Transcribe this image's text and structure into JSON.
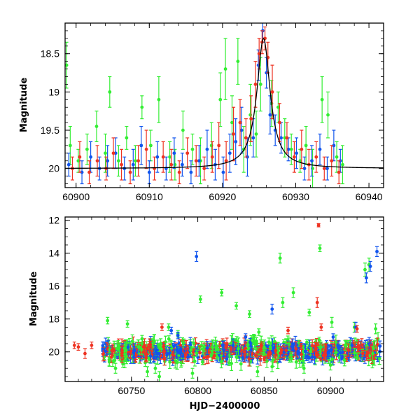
{
  "colors": {
    "green": "#33ee33",
    "blue": "#1155ee",
    "red": "#ee3322",
    "model": "#000000"
  },
  "chart_data": [
    {
      "type": "scatter",
      "title": "",
      "xlabel": "",
      "ylabel": "Magnitude",
      "xlim": [
        60898.5,
        60942
      ],
      "ylim": [
        20.25,
        18.1
      ],
      "y_inverted": true,
      "grid": false,
      "x_ticks": [
        "60900",
        "60910",
        "60920",
        "60930",
        "60940"
      ],
      "y_ticks": [
        "18.5",
        "19",
        "19.5",
        "20"
      ],
      "model_curve": {
        "description_type": "line",
        "color": "model",
        "peak_x": 60925.6,
        "baseline_mag": 20.0,
        "peak_mag": 18.3
      },
      "series": [
        {
          "color": "green",
          "x": [
            60898.7,
            60899.2,
            60900.3,
            60901.5,
            60902.8,
            60904.0,
            60904.6,
            60905.8,
            60906.9,
            60908.1,
            60909.0,
            60910.2,
            60911.3,
            60912.8,
            60913.5,
            60914.6,
            60915.9,
            60917.0,
            60918.5,
            60919.7,
            60920.4,
            60921.3,
            60922.1,
            60922.9,
            60923.8,
            60924.6,
            60925.2,
            60926.7,
            60927.6,
            60928.5,
            60929.4,
            60930.6,
            60931.4,
            60932.3,
            60933.6,
            60934.4,
            60935.6,
            60936.4
          ],
          "y": [
            18.65,
            19.7,
            19.9,
            19.75,
            19.45,
            19.8,
            19.0,
            19.9,
            19.6,
            19.9,
            19.2,
            19.7,
            19.1,
            19.85,
            19.95,
            19.5,
            19.75,
            19.9,
            19.7,
            19.1,
            18.7,
            19.4,
            18.6,
            19.75,
            19.3,
            19.55,
            18.9,
            19.15,
            19.2,
            19.6,
            19.75,
            19.9,
            19.7,
            20.0,
            19.1,
            19.3,
            19.85,
            19.95
          ],
          "yerr": [
            0.3,
            0.25,
            0.15,
            0.2,
            0.2,
            0.25,
            0.2,
            0.2,
            0.15,
            0.2,
            0.15,
            0.2,
            0.3,
            0.2,
            0.2,
            0.25,
            0.2,
            0.3,
            0.3,
            0.35,
            0.4,
            0.35,
            0.3,
            0.3,
            0.4,
            0.3,
            0.35,
            0.3,
            0.2,
            0.25,
            0.2,
            0.15,
            0.25,
            0.25,
            0.3,
            0.3,
            0.2,
            0.25
          ]
        },
        {
          "color": "blue",
          "x": [
            60899.0,
            60900.8,
            60902.0,
            60903.2,
            60904.3,
            60905.4,
            60906.6,
            60907.8,
            60908.9,
            60910.0,
            60911.1,
            60912.3,
            60913.4,
            60914.5,
            60915.7,
            60916.8,
            60917.9,
            60919.0,
            60920.1,
            60921.0,
            60921.8,
            60922.6,
            60923.4,
            60924.2,
            60924.9,
            60925.5,
            60926.0,
            60926.5,
            60927.2,
            60928.0,
            60929.0,
            60930.1,
            60931.2,
            60932.2,
            60933.3,
            60934.3,
            60935.2,
            60936.1
          ],
          "y": [
            19.95,
            20.05,
            19.85,
            20.0,
            19.9,
            19.8,
            20.0,
            19.95,
            19.7,
            20.05,
            19.85,
            20.0,
            19.8,
            19.95,
            20.05,
            19.9,
            19.75,
            19.95,
            20.05,
            19.8,
            19.65,
            19.5,
            19.85,
            19.6,
            18.65,
            18.2,
            18.75,
            19.3,
            19.5,
            19.6,
            19.75,
            19.8,
            20.0,
            19.9,
            19.75,
            20.0,
            19.7,
            19.9
          ],
          "yerr": [
            0.15,
            0.15,
            0.2,
            0.15,
            0.2,
            0.2,
            0.15,
            0.2,
            0.25,
            0.15,
            0.2,
            0.15,
            0.2,
            0.15,
            0.15,
            0.2,
            0.25,
            0.2,
            0.2,
            0.25,
            0.3,
            0.3,
            0.25,
            0.25,
            0.2,
            0.15,
            0.2,
            0.25,
            0.2,
            0.2,
            0.15,
            0.2,
            0.15,
            0.2,
            0.2,
            0.15,
            0.2,
            0.15
          ]
        },
        {
          "color": "red",
          "x": [
            60899.5,
            60900.5,
            60901.8,
            60902.9,
            60904.1,
            60905.1,
            60906.2,
            60907.4,
            60908.5,
            60909.6,
            60910.7,
            60911.9,
            60913.0,
            60914.1,
            60915.2,
            60916.4,
            60917.5,
            60918.6,
            60919.5,
            60920.5,
            60921.5,
            60922.4,
            60923.2,
            60923.9,
            60924.5,
            60925.0,
            60925.4,
            60925.8,
            60926.2,
            60926.8,
            60927.8,
            60928.8,
            60929.8,
            60930.8,
            60931.8,
            60932.8,
            60933.9,
            60934.9,
            60935.9
          ],
          "y": [
            20.0,
            19.85,
            20.05,
            19.9,
            20.0,
            19.8,
            19.95,
            20.05,
            19.9,
            19.75,
            20.0,
            19.85,
            19.95,
            20.05,
            19.8,
            19.9,
            20.0,
            19.85,
            19.7,
            19.9,
            19.55,
            19.4,
            19.6,
            19.35,
            18.9,
            18.5,
            18.35,
            18.3,
            18.55,
            19.0,
            19.4,
            19.6,
            19.85,
            19.75,
            19.95,
            19.85,
            20.0,
            19.9,
            20.05
          ],
          "yerr": [
            0.15,
            0.2,
            0.15,
            0.2,
            0.15,
            0.2,
            0.2,
            0.15,
            0.2,
            0.25,
            0.15,
            0.2,
            0.2,
            0.15,
            0.2,
            0.2,
            0.15,
            0.2,
            0.3,
            0.25,
            0.35,
            0.3,
            0.25,
            0.3,
            0.3,
            0.2,
            0.15,
            0.15,
            0.2,
            0.35,
            0.25,
            0.2,
            0.2,
            0.25,
            0.2,
            0.2,
            0.15,
            0.2,
            0.15
          ]
        }
      ]
    },
    {
      "type": "scatter",
      "title": "",
      "xlabel": "HJD−2400000",
      "ylabel": "Magnitude",
      "xlim": [
        60700,
        60940
      ],
      "ylim": [
        21.8,
        11.8
      ],
      "y_inverted": true,
      "grid": false,
      "x_ticks": [
        "60750",
        "60800",
        "60850",
        "60900"
      ],
      "y_ticks": [
        "12",
        "14",
        "16",
        "18",
        "20"
      ],
      "baseline_band": {
        "x_start": 60728,
        "x_end": 60938,
        "mag_center": 19.95,
        "mag_spread": 0.55,
        "colors": [
          "red",
          "blue",
          "green"
        ]
      },
      "series": [
        {
          "color": "green",
          "x": [
            60732,
            60747,
            60758,
            60768,
            60771,
            60778,
            60785,
            60802,
            60818,
            60829,
            60839,
            60846,
            60862,
            60864,
            60872,
            60884,
            60892,
            60901,
            60911,
            60918,
            60926,
            60929,
            60934,
            60738,
            60762,
            60796,
            60845,
            60856,
            60880,
            60900
          ],
          "y": [
            18.1,
            18.3,
            19.2,
            21.0,
            21.5,
            18.5,
            18.9,
            16.8,
            16.4,
            17.2,
            17.7,
            18.8,
            14.3,
            17.0,
            16.4,
            17.6,
            13.7,
            18.2,
            19.6,
            18.5,
            15.0,
            14.7,
            18.6,
            21.0,
            21.2,
            21.3,
            21.2,
            20.9,
            21.0,
            20.8
          ],
          "yerr": [
            0.2,
            0.2,
            0.2,
            0.3,
            0.3,
            0.2,
            0.2,
            0.2,
            0.2,
            0.2,
            0.2,
            0.2,
            0.3,
            0.3,
            0.3,
            0.2,
            0.2,
            0.3,
            0.3,
            0.3,
            0.4,
            0.4,
            0.3,
            0.3,
            0.3,
            0.3,
            0.3,
            0.3,
            0.3,
            0.3
          ]
        },
        {
          "color": "blue",
          "x": [
            60780,
            60785,
            60799,
            60836,
            60856,
            60902,
            60919,
            60927,
            60930,
            60935
          ],
          "y": [
            18.7,
            19.0,
            14.2,
            19.1,
            17.4,
            19.1,
            18.5,
            15.5,
            14.8,
            13.9
          ],
          "yerr": [
            0.2,
            0.2,
            0.3,
            0.2,
            0.3,
            0.2,
            0.3,
            0.3,
            0.3,
            0.3
          ]
        },
        {
          "color": "red",
          "x": [
            60707,
            60710,
            60715,
            60720,
            60773,
            60853,
            60868,
            60890,
            60891,
            60893,
            60920
          ],
          "y": [
            19.6,
            19.7,
            20.1,
            19.6,
            18.5,
            20.2,
            18.7,
            17.0,
            12.3,
            18.5,
            18.6
          ],
          "yerr": [
            0.2,
            0.2,
            0.3,
            0.2,
            0.2,
            0.2,
            0.2,
            0.3,
            0.1,
            0.2,
            0.2
          ]
        }
      ]
    }
  ]
}
